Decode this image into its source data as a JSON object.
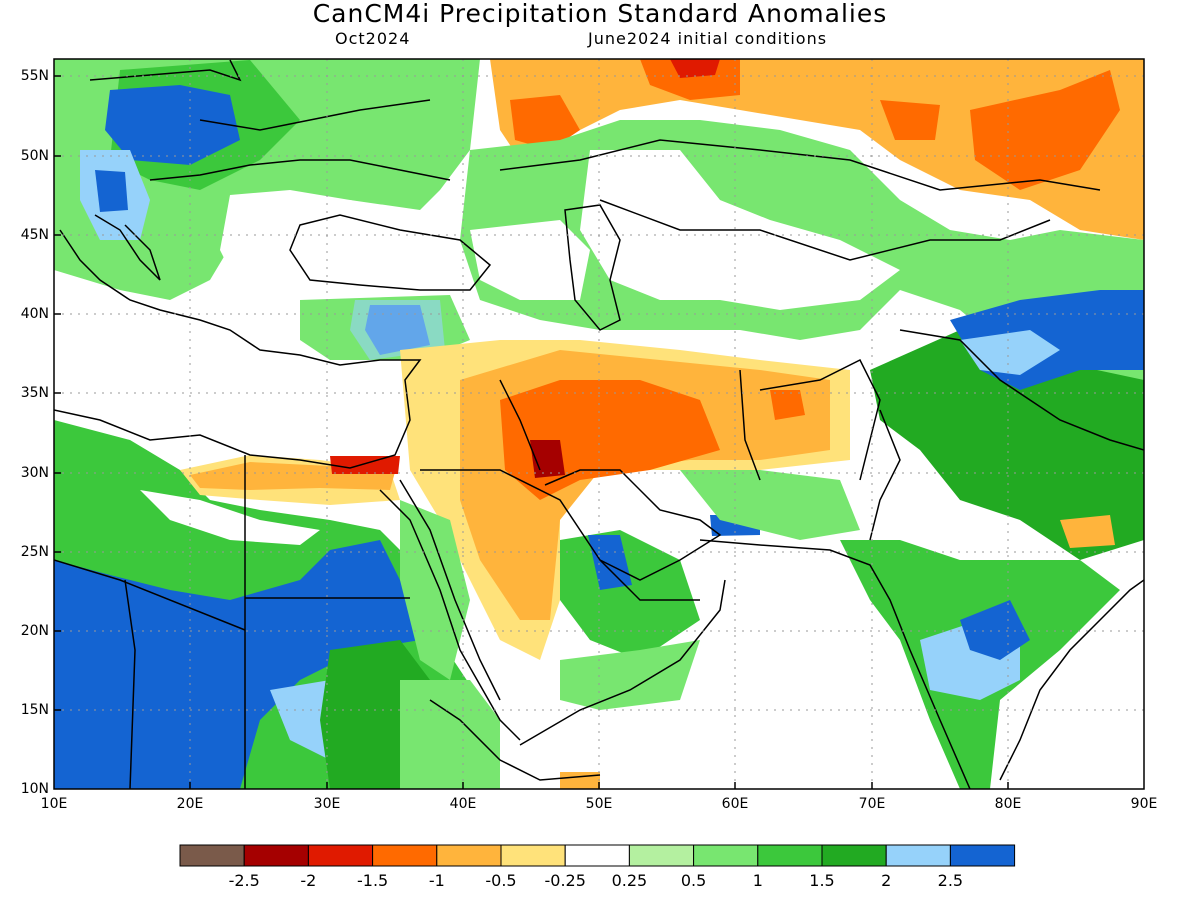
{
  "title": "CanCM4i Precipitation Standard Anomalies",
  "valid_month": "Oct2024",
  "init_conditions": "June2024 initial conditions",
  "lat_ticks": [
    "55N",
    "50N",
    "45N",
    "40N",
    "35N",
    "30N",
    "25N",
    "20N",
    "15N",
    "10N"
  ],
  "lon_ticks": [
    "10E",
    "20E",
    "30E",
    "40E",
    "50E",
    "60E",
    "70E",
    "80E",
    "90E"
  ],
  "colorbar": {
    "colors": [
      "#7a5a4a",
      "#a50000",
      "#e01a00",
      "#ff6a00",
      "#ffb43c",
      "#ffe27a",
      "#ffffff",
      "#b4f0a0",
      "#78e670",
      "#3cc83c",
      "#22aa22",
      "#96d2fa",
      "#1464d2"
    ],
    "labels": [
      "-2.5",
      "-2",
      "-1.5",
      "-1",
      "-0.5",
      "-0.25",
      "0.25",
      "0.5",
      "1",
      "1.5",
      "2",
      "2.5"
    ]
  }
}
